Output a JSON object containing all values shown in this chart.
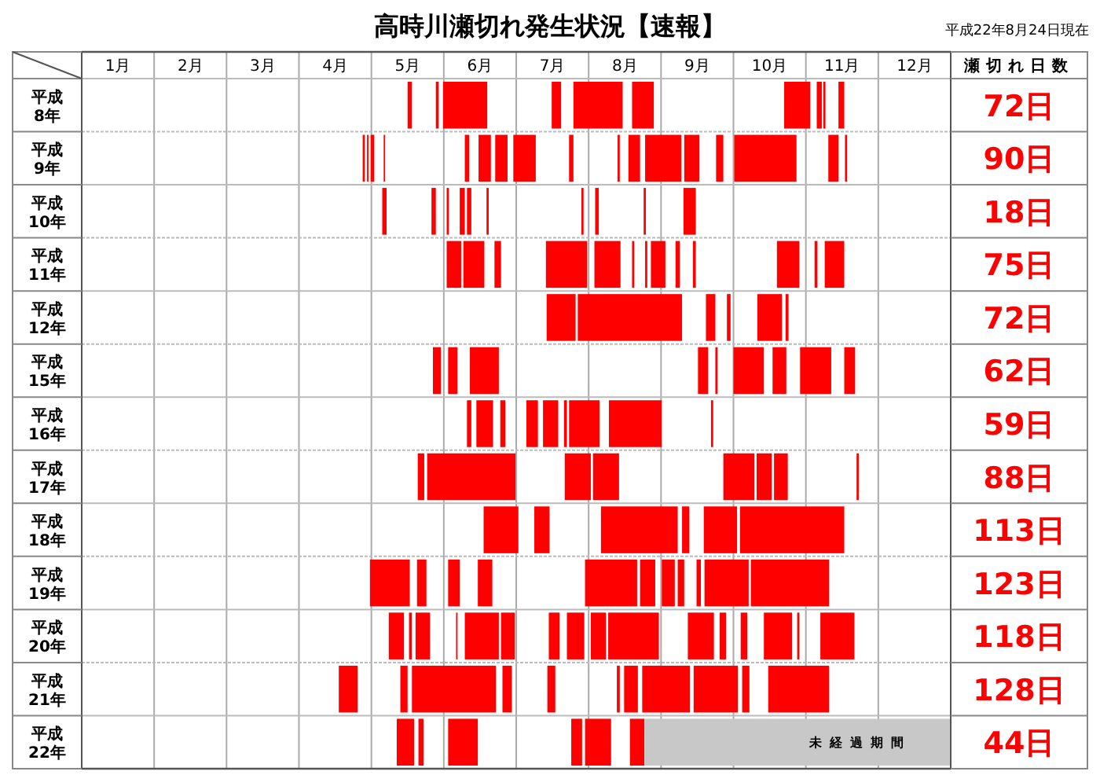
{
  "chart_data": {
    "type": "bar",
    "orientation": "horizontal",
    "title": "高時川瀬切れ発生状況【速報】",
    "subtitle": "平成22年8月24日現在",
    "annotations": [
      "瀬切れ日数",
      "72日",
      "90日",
      "18日",
      "75日",
      "72日",
      "62日",
      "59日",
      "88日",
      "113日",
      "123日",
      "118日",
      "128日",
      "44日"
    ],
    "categories": [
      "平成8年",
      "平成9年",
      "平成10年",
      "平成11年",
      "平成12年",
      "平成15年",
      "平成16年",
      "平成17年",
      "平成18年",
      "平成19年",
      "平成20年",
      "平成21年",
      "平成22年"
    ],
    "xlim": [
      0,
      12
    ],
    "xticks": [
      {
        "value": 0,
        "label": null
      },
      {
        "value": 0.5,
        "label": "1月"
      },
      {
        "value": 1,
        "label": null
      },
      {
        "value": 1.5,
        "label": "2月"
      },
      {
        "value": 2,
        "label": null
      },
      {
        "value": 2.5,
        "label": "3月"
      },
      {
        "value": 3,
        "label": null
      },
      {
        "value": 3.5,
        "label": "4月"
      },
      {
        "value": 4,
        "label": null
      },
      {
        "value": 4.5,
        "label": "5月"
      },
      {
        "value": 5,
        "label": null
      },
      {
        "value": 5.5,
        "label": "6月"
      },
      {
        "value": 6,
        "label": null
      },
      {
        "value": 6.5,
        "label": "7月"
      },
      {
        "value": 7,
        "label": null
      },
      {
        "value": 7.5,
        "label": "8月"
      },
      {
        "value": 8,
        "label": null
      },
      {
        "value": 8.5,
        "label": "9月"
      },
      {
        "value": 9,
        "label": null
      },
      {
        "value": 9.5,
        "label": "10月"
      },
      {
        "value": 10,
        "label": null
      },
      {
        "value": 10.5,
        "label": "11月"
      },
      {
        "value": 11,
        "label": null
      },
      {
        "value": 11.5,
        "label": "12月"
      },
      {
        "value": 12,
        "label": null
      }
    ],
    "grid": "x",
    "series": [
      {
        "color": "#ff0000",
        "base": [
          4.5,
          3.88,
          4.15,
          5.04,
          6.42,
          4.85,
          5.32,
          4.64,
          5.55,
          3.98,
          4.24,
          3.55,
          4.35
        ],
        "values": [
          0.06,
          0.03,
          0.06,
          0.2,
          0.4,
          0.11,
          0.06,
          0.09,
          0.48,
          0.55,
          0.21,
          0.26,
          0.24
        ]
      },
      {
        "color": "#ff0000",
        "base": [
          4.89,
          3.94,
          4.83,
          5.27,
          6.85,
          5.06,
          5.45,
          4.77,
          6.25,
          4.63,
          4.52,
          4.4,
          4.65
        ],
        "values": [
          0.04,
          0.02,
          0.06,
          0.29,
          1.44,
          0.13,
          0.23,
          1.22,
          0.21,
          0.13,
          0.04,
          0.1,
          0.07
        ]
      },
      {
        "color": "#ff0000",
        "base": [
          4.99,
          3.99,
          5.04,
          5.7,
          8.62,
          5.36,
          5.78,
          6.67,
          7.17,
          5.06,
          4.61,
          4.56,
          5.06
        ],
        "values": [
          0.61,
          0.05,
          0.03,
          0.09,
          0.13,
          0.4,
          0.07,
          0.36,
          1.06,
          0.16,
          0.2,
          1.16,
          0.41
        ]
      },
      {
        "color": "#ff0000",
        "base": [
          6.49,
          4.17,
          5.22,
          6.41,
          8.91,
          8.51,
          6.14,
          7.06,
          8.29,
          5.47,
          5.17,
          5.81,
          6.76
        ],
        "values": [
          0.13,
          0.02,
          0.07,
          0.57,
          0.05,
          0.14,
          0.16,
          0.36,
          0.1,
          0.2,
          0.02,
          0.13,
          0.15
        ]
      },
      {
        "color": "#ff0000",
        "base": [
          6.79,
          5.29,
          5.32,
          7.08,
          9.33,
          8.75,
          6.37,
          8.86,
          8.59,
          6.95,
          5.29,
          6.43,
          6.95
        ],
        "values": [
          0.68,
          0.06,
          0.06,
          0.36,
          0.34,
          0.03,
          0.21,
          0.43,
          0.46,
          0.72,
          0.47,
          0.11,
          0.36
        ]
      },
      {
        "color": "#ff0000",
        "base": [
          7.6,
          5.48,
          5.59,
          7.6,
          9.72,
          9.0,
          6.66,
          9.32,
          9.09,
          7.71,
          5.79,
          7.39,
          7.57
        ],
        "values": [
          0.3,
          0.17,
          0.03,
          0.03,
          0.04,
          0.42,
          0.04,
          0.21,
          1.44,
          0.21,
          0.19,
          0.04,
          0.2
        ]
      },
      {
        "color": "#ff0000",
        "base": [
          9.7,
          5.71,
          6.9,
          7.78,
          null,
          9.54,
          6.73,
          9.56,
          null,
          8.01,
          6.45,
          7.49,
          null
        ],
        "values": [
          0.36,
          0.17,
          0.03,
          0.03,
          null,
          0.19,
          0.42,
          0.19,
          null,
          0.18,
          0.15,
          0.19,
          null
        ]
      },
      {
        "color": "#ff0000",
        "base": [
          10.15,
          5.96,
          7.09,
          7.86,
          null,
          9.92,
          7.28,
          10.7,
          null,
          8.23,
          6.7,
          7.74,
          null
        ],
        "values": [
          0.07,
          0.31,
          0.05,
          0.2,
          null,
          0.43,
          0.73,
          0.03,
          null,
          0.09,
          0.24,
          0.66,
          null
        ]
      },
      {
        "color": "#ff0000",
        "base": [
          10.24,
          6.73,
          7.76,
          8.2,
          null,
          10.53,
          8.69,
          null,
          null,
          8.49,
          7.03,
          8.45,
          null
        ],
        "values": [
          0.03,
          0.06,
          0.03,
          0.06,
          null,
          0.15,
          0.03,
          null,
          null,
          0.06,
          0.21,
          0.61,
          null
        ]
      },
      {
        "color": "#ff0000",
        "base": [
          10.45,
          7.4,
          8.31,
          8.44,
          null,
          null,
          null,
          null,
          null,
          8.6,
          7.27,
          9.12,
          null
        ],
        "values": [
          0.08,
          0.03,
          0.17,
          0.04,
          null,
          null,
          null,
          null,
          null,
          0.61,
          0.7,
          0.1,
          null
        ]
      },
      {
        "color": "#ff0000",
        "base": [
          null,
          7.55,
          null,
          9.6,
          null,
          null,
          null,
          null,
          null,
          9.24,
          8.37,
          9.48,
          null
        ],
        "values": [
          null,
          0.16,
          null,
          0.31,
          null,
          null,
          null,
          null,
          null,
          1.08,
          0.36,
          0.84,
          null
        ]
      },
      {
        "color": "#ff0000",
        "base": [
          null,
          7.78,
          null,
          10.12,
          null,
          null,
          null,
          null,
          null,
          null,
          8.81,
          null,
          null
        ],
        "values": [
          null,
          0.5,
          null,
          0.04,
          null,
          null,
          null,
          null,
          null,
          null,
          0.09,
          null,
          null
        ]
      },
      {
        "color": "#ff0000",
        "base": [
          null,
          8.32,
          null,
          10.26,
          null,
          null,
          null,
          null,
          null,
          null,
          9.1,
          null,
          null
        ],
        "values": [
          null,
          0.21,
          null,
          0.27,
          null,
          null,
          null,
          null,
          null,
          null,
          0.09,
          null,
          null
        ]
      },
      {
        "color": "#ff0000",
        "base": [
          null,
          8.76,
          null,
          null,
          null,
          null,
          null,
          null,
          null,
          null,
          9.42,
          null,
          null
        ],
        "values": [
          null,
          0.1,
          null,
          null,
          null,
          null,
          null,
          null,
          null,
          null,
          0.39,
          null,
          null
        ]
      },
      {
        "color": "#ff0000",
        "base": [
          null,
          9.01,
          null,
          null,
          null,
          null,
          null,
          null,
          null,
          null,
          9.88,
          null,
          null
        ],
        "values": [
          null,
          0.86,
          null,
          null,
          null,
          null,
          null,
          null,
          null,
          null,
          0.03,
          null,
          null
        ]
      },
      {
        "color": "#ff0000",
        "base": [
          null,
          10.31,
          null,
          null,
          null,
          null,
          null,
          null,
          null,
          null,
          10.2,
          null,
          null
        ],
        "values": [
          null,
          0.14,
          null,
          null,
          null,
          null,
          null,
          null,
          null,
          null,
          0.47,
          null,
          null
        ]
      },
      {
        "color": "#ff0000",
        "base": [
          null,
          10.54,
          null,
          null,
          null,
          null,
          null,
          null,
          null,
          null,
          null,
          null,
          null
        ],
        "values": [
          null,
          0.03,
          null,
          null,
          null,
          null,
          null,
          null,
          null,
          null,
          null,
          null,
          null
        ]
      },
      {
        "name": "未経過期間",
        "color": "#c8c8c8",
        "base": [
          null,
          null,
          null,
          null,
          null,
          null,
          null,
          null,
          null,
          null,
          null,
          null,
          7.77
        ],
        "values": [
          null,
          null,
          null,
          null,
          null,
          null,
          null,
          null,
          null,
          null,
          null,
          null,
          4.23
        ]
      }
    ]
  }
}
